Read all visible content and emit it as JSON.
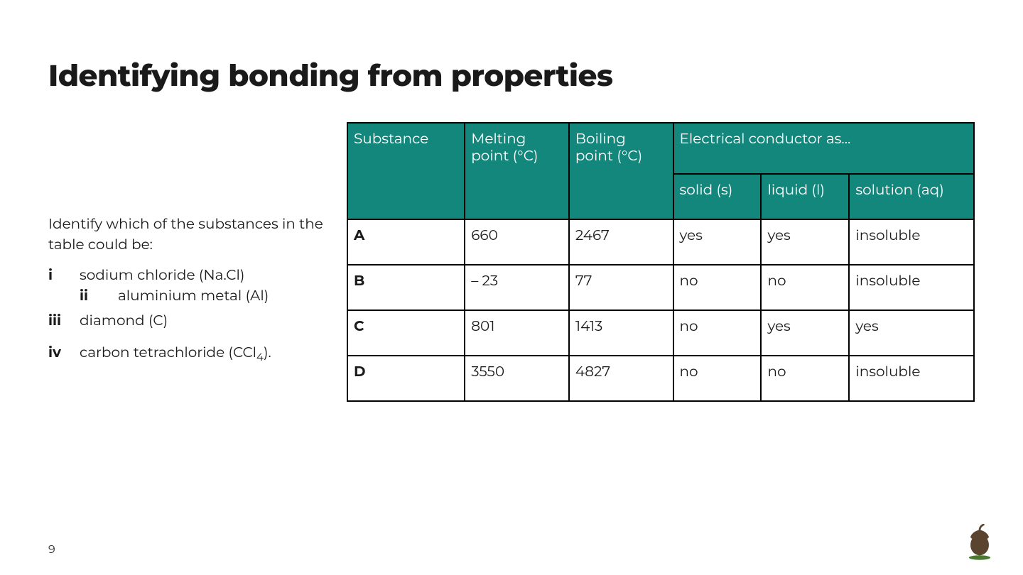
{
  "title": "Identifying bonding from properties",
  "prompt": "Identify which of the substances in the table could be:",
  "items": [
    {
      "marker": "i",
      "text": "sodium chloride (Na.Cl)",
      "sub": {
        "marker": "ii",
        "text": "aluminium metal (Al)"
      }
    },
    {
      "marker": "iii",
      "text": "diamond (C)"
    },
    {
      "marker": "iv",
      "text": "carbon tetrachloride (CCl",
      "subscript": "4",
      "tail": ")."
    }
  ],
  "table": {
    "header_bg": "#14877d",
    "header_fg": "#ffffff",
    "border_color": "#000000",
    "columns": {
      "substance": "Substance",
      "melting": "Melting point (°C)",
      "boiling": "Boiling point (°C)",
      "conductor_span": "Electrical conductor as…",
      "solid": "solid (s)",
      "liquid": "liquid (l)",
      "aq": "solution (aq)"
    },
    "rows": [
      {
        "substance": "A",
        "mp": "660",
        "bp": "2467",
        "s": "yes",
        "l": "yes",
        "aq": "insoluble"
      },
      {
        "substance": "B",
        "mp": "– 23",
        "bp": "77",
        "s": "no",
        "l": "no",
        "aq": "insoluble"
      },
      {
        "substance": "C",
        "mp": "801",
        "bp": "1413",
        "s": "no",
        "l": "yes",
        "aq": "yes"
      },
      {
        "substance": "D",
        "mp": "3550",
        "bp": "4827",
        "s": "no",
        "l": "no",
        "aq": "insoluble"
      }
    ]
  },
  "page_number": "9",
  "logo_colors": {
    "acorn": "#5a4430",
    "leaf": "#4a7a2f"
  }
}
